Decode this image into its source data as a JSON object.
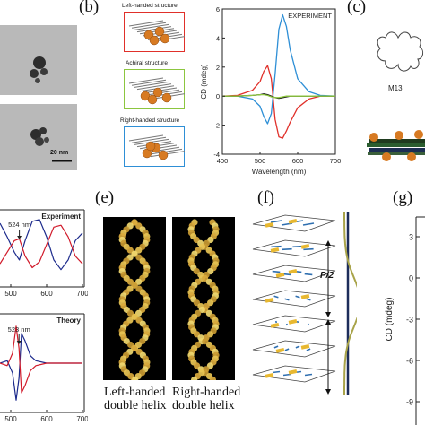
{
  "panels": {
    "b": "(b)",
    "c": "(c)",
    "e": "(e)",
    "f": "(f)",
    "g": "(g)"
  },
  "tem": {
    "scale_bar": "20 nm"
  },
  "structures": [
    {
      "label": "Left-handed structure",
      "color": "#e0302a"
    },
    {
      "label": "Achiral structure",
      "color": "#8cc63f"
    },
    {
      "label": "Right-handed structure",
      "color": "#2e8fd6"
    }
  ],
  "colors": {
    "gold_particle": "#d77a22",
    "red": "#e0302a",
    "blue": "#2e8fd6",
    "black": "#111111",
    "green": "#8cc63f",
    "nanorod_yellow": "#e8b830"
  },
  "chart_data": [
    {
      "type": "line",
      "title": "EXPERIMENT",
      "xlabel": "Wavelength (nm)",
      "ylabel": "CD (mdeg)",
      "xlim": [
        400,
        700
      ],
      "ylim": [
        -4,
        6
      ],
      "xticks": [
        "400",
        "500",
        "600",
        "700"
      ],
      "yticks": [
        "-4",
        "-2",
        "0",
        "2",
        "4",
        "6"
      ],
      "x": [
        400,
        440,
        480,
        500,
        510,
        520,
        530,
        540,
        550,
        560,
        570,
        580,
        600,
        630,
        660,
        700
      ],
      "series": [
        {
          "key": "right",
          "color": "#2e8fd6",
          "values": [
            0,
            0,
            -0.2,
            -0.7,
            -1.4,
            -1.9,
            -1.2,
            1.5,
            4.6,
            5.6,
            4.8,
            3.2,
            1.2,
            0.3,
            0.05,
            0
          ]
        },
        {
          "key": "left",
          "color": "#e0302a",
          "values": [
            0,
            0.05,
            0.4,
            1.0,
            1.7,
            2.1,
            1.2,
            -1.6,
            -2.8,
            -2.9,
            -2.4,
            -1.8,
            -0.8,
            -0.2,
            0,
            0
          ]
        },
        {
          "key": "achiral_black",
          "color": "#111111",
          "values": [
            0,
            0,
            0.05,
            0.1,
            0.15,
            0.1,
            0,
            -0.1,
            -0.15,
            -0.1,
            -0.05,
            0,
            0,
            0,
            0,
            0
          ]
        },
        {
          "key": "achiral_green",
          "color": "#8cc63f",
          "values": [
            0,
            0,
            0.05,
            0.1,
            0.1,
            0.05,
            -0.05,
            -0.1,
            -0.1,
            -0.05,
            0,
            0,
            0,
            0,
            0,
            0
          ]
        }
      ]
    },
    {
      "type": "line",
      "title": "Experiment",
      "annotation": "524 nm",
      "xticks": [
        "500",
        "600",
        "700"
      ],
      "xlim": [
        470,
        705
      ],
      "ylim": [
        -1,
        1
      ],
      "x": [
        470,
        490,
        510,
        524,
        540,
        560,
        580,
        600,
        620,
        640,
        660,
        680,
        700
      ],
      "series": [
        {
          "key": "blue",
          "color": "#1c2a8c",
          "values": [
            0.65,
            0.3,
            -0.1,
            -0.3,
            0.2,
            0.7,
            0.75,
            0.3,
            -0.3,
            -0.55,
            -0.3,
            0.2,
            0.4
          ]
        },
        {
          "key": "red",
          "color": "#d11a2a",
          "values": [
            -0.4,
            -0.1,
            0.2,
            0.25,
            -0.2,
            -0.5,
            -0.35,
            0.1,
            0.55,
            0.6,
            0.3,
            -0.2,
            -0.4
          ]
        }
      ]
    },
    {
      "type": "line",
      "title": "Theory",
      "annotation": "523 nm",
      "xticks": [
        "500",
        "600",
        "700"
      ],
      "xlim": [
        470,
        705
      ],
      "ylim": [
        -1,
        1
      ],
      "x": [
        470,
        490,
        505,
        515,
        523,
        530,
        540,
        555,
        570,
        600,
        650,
        700
      ],
      "series": [
        {
          "key": "blue",
          "color": "#1c2a8c",
          "values": [
            0,
            0.05,
            -0.2,
            -0.75,
            -0.3,
            0.6,
            0.45,
            0.15,
            0.05,
            0,
            0,
            0
          ]
        },
        {
          "key": "red",
          "color": "#d11a2a",
          "values": [
            0,
            -0.05,
            0.2,
            0.75,
            0.3,
            -0.6,
            -0.45,
            -0.15,
            -0.05,
            0,
            0,
            0
          ]
        }
      ]
    }
  ],
  "m13": "M13",
  "helix": {
    "left_caption": [
      "Left-handed",
      "double helix"
    ],
    "right_caption": [
      "Right-handed",
      "double helix"
    ]
  },
  "stack": {
    "pitch_label": "P/2"
  },
  "panel_g": {
    "ylabel": "CD (mdeg)",
    "yticks": [
      "3",
      "0",
      "-3",
      "-6",
      "-9"
    ]
  }
}
